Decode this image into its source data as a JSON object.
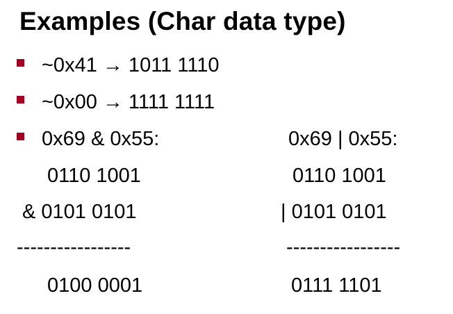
{
  "slide": {
    "title": "Examples (Char data type)",
    "bullet_color": "#a50021",
    "bullets": [
      "~0x41 → 1011 1110",
      "~0x00 → 1111 1111",
      "0x69 & 0x55:"
    ],
    "and_example": {
      "operand1": "0110 1001",
      "operand2": "& 0101 0101",
      "separator": "-----------------",
      "result": "0100 0001"
    },
    "or_example": {
      "header": "0x69 | 0x55:",
      "operand1": "0110 1001",
      "operand2": "| 0101 0101",
      "separator": "-----------------",
      "result": "0111 1101"
    }
  }
}
